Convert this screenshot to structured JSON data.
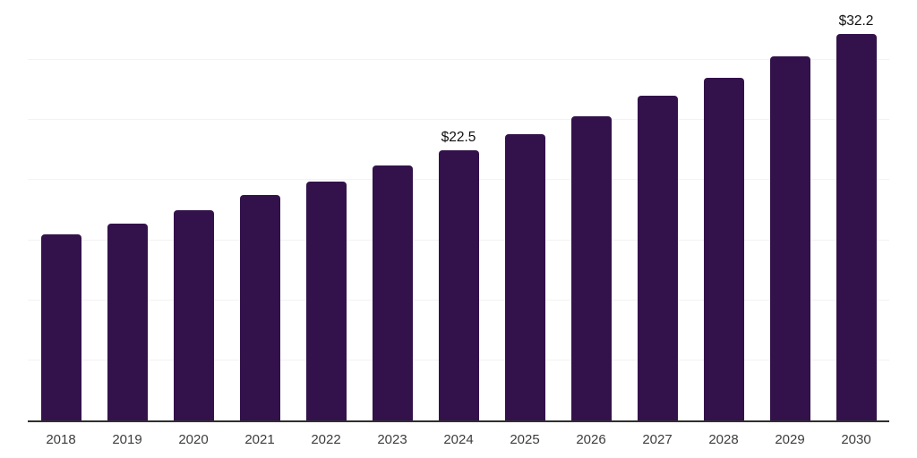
{
  "chart_data": {
    "type": "bar",
    "categories": [
      "2018",
      "2019",
      "2020",
      "2021",
      "2022",
      "2023",
      "2024",
      "2025",
      "2026",
      "2027",
      "2028",
      "2029",
      "2030"
    ],
    "values": [
      15.5,
      16.4,
      17.5,
      18.8,
      19.9,
      21.2,
      22.5,
      23.8,
      25.3,
      27.0,
      28.5,
      30.3,
      32.2
    ],
    "bar_labels": [
      "",
      "",
      "",
      "",
      "",
      "",
      "$22.5",
      "",
      "",
      "",
      "",
      "",
      "$32.2"
    ],
    "title": "",
    "xlabel": "",
    "ylabel": "",
    "ylim": [
      0,
      35
    ],
    "grid": true,
    "grid_step": 5,
    "legend_position": "none",
    "colors": {
      "bar": "#33124B",
      "grid": "#f3f3f5",
      "axis": "#2f2f2f",
      "tick_label": "#3d3d3d",
      "data_label": "#0f0f0f",
      "background": "#ffffff"
    }
  }
}
